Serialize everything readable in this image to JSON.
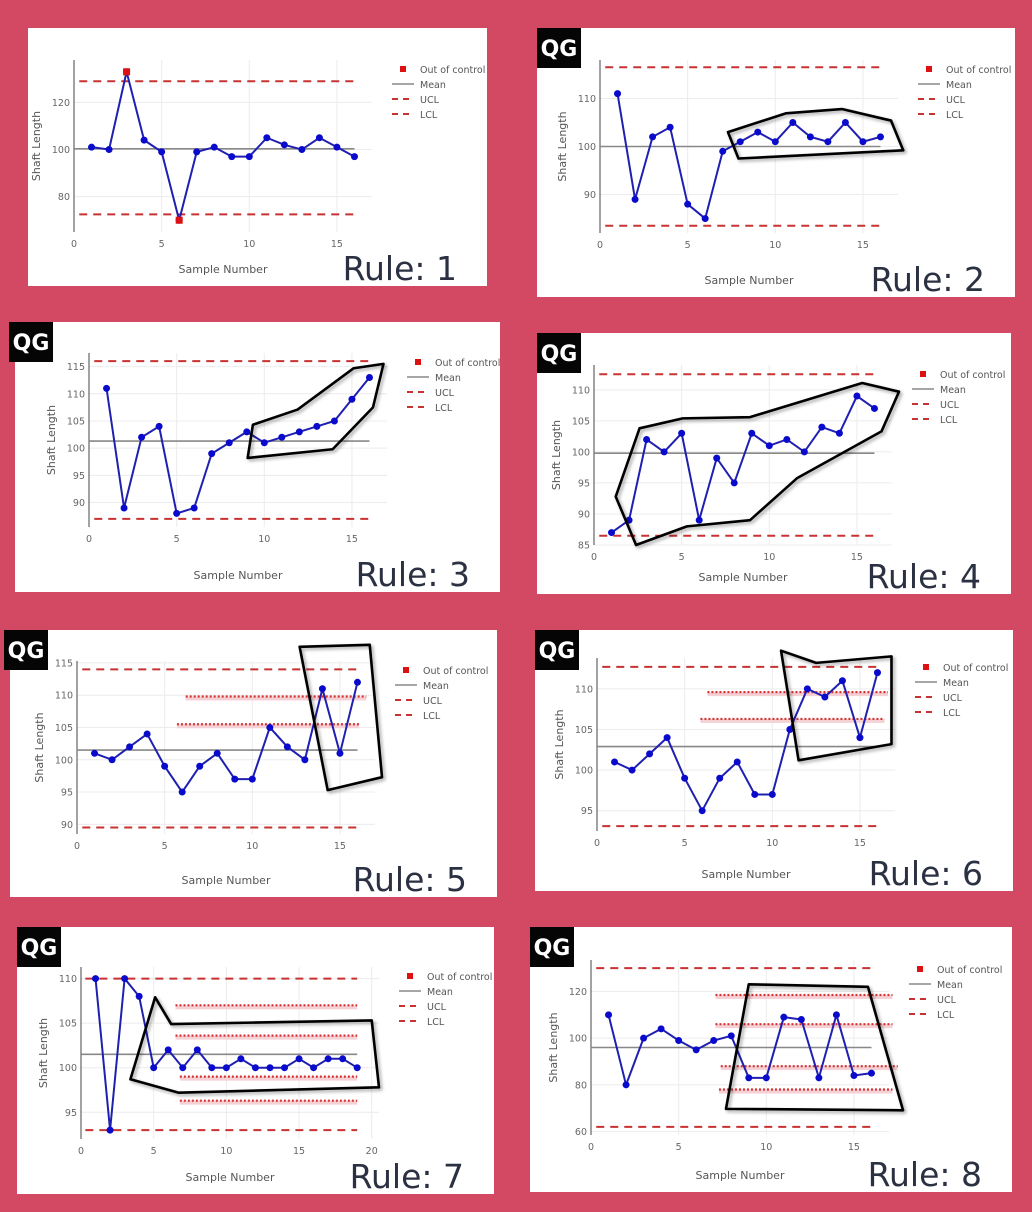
{
  "colors": {
    "background": "#d34862",
    "series": "#1f1fb0",
    "marker": "#0a0acc",
    "out_of_control": "#dd1111",
    "mean": "#888888",
    "control_limits": "#c83232",
    "zone_lines": "#d33333",
    "highlight": "#000000"
  },
  "chart_data": [
    {
      "type": "line",
      "title": "Rule: 1",
      "logo": "",
      "xlabel": "Sample Number",
      "ylabel": "Shaft Length",
      "xlim": [
        0,
        17
      ],
      "ylim": [
        65,
        138
      ],
      "xticks": [
        0,
        5,
        10,
        15
      ],
      "yticks": [
        80,
        100,
        120
      ],
      "grid": true,
      "x": [
        1,
        2,
        3,
        4,
        5,
        6,
        7,
        8,
        9,
        10,
        11,
        12,
        13,
        14,
        15,
        16
      ],
      "series": [
        {
          "values": [
            101,
            100,
            133,
            104,
            99,
            70,
            99,
            101,
            97,
            97,
            105,
            102,
            100,
            105,
            101,
            97
          ]
        }
      ],
      "mean": 100.3,
      "ucl": 129,
      "lcl": 72.5,
      "out_of_control": [
        {
          "x": 3,
          "y": 133
        },
        {
          "x": 6,
          "y": 70
        }
      ],
      "zone_lines": [],
      "highlight_polygon": [],
      "legend": [
        "Out of control",
        "Mean",
        "UCL",
        "LCL"
      ],
      "legend_position": "top-right"
    },
    {
      "type": "line",
      "title": "Rule: 2",
      "logo": "QG",
      "xlabel": "Sample Number",
      "ylabel": "Shaft Length",
      "xlim": [
        0,
        17
      ],
      "ylim": [
        82,
        118
      ],
      "xticks": [
        0,
        5,
        10,
        15
      ],
      "yticks": [
        90,
        100,
        110
      ],
      "grid": true,
      "x": [
        1,
        2,
        3,
        4,
        5,
        6,
        7,
        8,
        9,
        10,
        11,
        12,
        13,
        14,
        15,
        16
      ],
      "series": [
        {
          "values": [
            111,
            89,
            102,
            104,
            88,
            85,
            99,
            101,
            103,
            101,
            105,
            102,
            101,
            105,
            101,
            102
          ]
        }
      ],
      "mean": 100,
      "ucl": 116.5,
      "lcl": 83.5,
      "out_of_control": [],
      "zone_lines": [],
      "highlight_polygon": [
        [
          7.3,
          103
        ],
        [
          10.6,
          106.9
        ],
        [
          13.8,
          107.8
        ],
        [
          16.6,
          105.4
        ],
        [
          17.3,
          99.2
        ],
        [
          7.9,
          97.5
        ]
      ],
      "legend": [
        "Out of control",
        "Mean",
        "UCL",
        "LCL"
      ],
      "legend_position": "top-right"
    },
    {
      "type": "line",
      "title": "Rule: 3",
      "logo": "QG",
      "xlabel": "Sample Number",
      "ylabel": "Shaft Length",
      "xlim": [
        0,
        17
      ],
      "ylim": [
        85.5,
        117.5
      ],
      "xticks": [
        0,
        5,
        10,
        15
      ],
      "yticks": [
        90,
        95,
        100,
        105,
        110,
        115
      ],
      "grid": true,
      "x": [
        1,
        2,
        3,
        4,
        5,
        6,
        7,
        8,
        9,
        10,
        11,
        12,
        13,
        14,
        15,
        16
      ],
      "series": [
        {
          "values": [
            111,
            89,
            102,
            104,
            88,
            89,
            99,
            101,
            103,
            101,
            102,
            103,
            104,
            105,
            109,
            113
          ]
        }
      ],
      "mean": 101.3,
      "ucl": 116,
      "lcl": 87,
      "out_of_control": [],
      "zone_lines": [],
      "highlight_polygon": [
        [
          9.35,
          104.3
        ],
        [
          11.9,
          107.1
        ],
        [
          15.1,
          114.7
        ],
        [
          16.8,
          115.5
        ],
        [
          16.2,
          107.5
        ],
        [
          13.9,
          99.8
        ],
        [
          9.05,
          98.2
        ]
      ],
      "legend": [
        "Out of control",
        "Mean",
        "UCL",
        "LCL"
      ],
      "legend_position": "top-right"
    },
    {
      "type": "line",
      "title": "Rule: 4",
      "logo": "QG",
      "xlabel": "Sample Number",
      "ylabel": "Shaft Length",
      "xlim": [
        0,
        17
      ],
      "ylim": [
        85,
        114
      ],
      "xticks": [
        0,
        5,
        10,
        15
      ],
      "yticks": [
        85,
        90,
        95,
        100,
        105,
        110
      ],
      "grid": true,
      "x": [
        1,
        2,
        3,
        4,
        5,
        6,
        7,
        8,
        9,
        10,
        11,
        12,
        13,
        14,
        15,
        16
      ],
      "series": [
        {
          "values": [
            87,
            89,
            102,
            100,
            103,
            89,
            99,
            95,
            103,
            101,
            102,
            100,
            104,
            103,
            109,
            107
          ]
        }
      ],
      "mean": 99.8,
      "ucl": 112.5,
      "lcl": 86.5,
      "out_of_control": [],
      "zone_lines": [],
      "highlight_polygon": [
        [
          1.24,
          92.8
        ],
        [
          2.6,
          103.8
        ],
        [
          5.06,
          105.4
        ],
        [
          8.9,
          105.6
        ],
        [
          15.3,
          111.1
        ],
        [
          17.4,
          109.7
        ],
        [
          16.4,
          103.3
        ],
        [
          11.6,
          95.8
        ],
        [
          8.9,
          89
        ],
        [
          5.3,
          88
        ],
        [
          2.4,
          85
        ]
      ],
      "legend": [
        "Out of control",
        "Mean",
        "UCL",
        "LCL"
      ],
      "legend_position": "top-right"
    },
    {
      "type": "line",
      "title": "Rule: 5",
      "logo": "QG",
      "xlabel": "Sample Number",
      "ylabel": "Shaft Length",
      "xlim": [
        0,
        17
      ],
      "ylim": [
        88.5,
        115.3
      ],
      "xticks": [
        0,
        5,
        10,
        15
      ],
      "yticks": [
        90,
        95,
        100,
        105,
        110,
        115
      ],
      "grid": true,
      "x": [
        1,
        2,
        3,
        4,
        5,
        6,
        7,
        8,
        9,
        10,
        11,
        12,
        13,
        14,
        15,
        16
      ],
      "series": [
        {
          "values": [
            101,
            100,
            102,
            104,
            99,
            95,
            99,
            101,
            97,
            97,
            105,
            102,
            100,
            111,
            101,
            112
          ]
        }
      ],
      "mean": 101.5,
      "ucl": 114,
      "lcl": 89.5,
      "out_of_control": [],
      "zone_lines": [
        {
          "y": 109.8,
          "x": [
            6.2,
            16.5
          ]
        },
        {
          "y": 105.5,
          "x": [
            5.7,
            16.1
          ]
        }
      ],
      "highlight_polygon": [
        [
          12.7,
          117.5
        ],
        [
          16.7,
          117.8
        ],
        [
          17.4,
          97.3
        ],
        [
          14.3,
          95.3
        ]
      ],
      "legend": [
        "Out of control",
        "Mean",
        "UCL",
        "LCL"
      ],
      "legend_position": "top-right"
    },
    {
      "type": "line",
      "title": "Rule: 6",
      "logo": "QG",
      "xlabel": "Sample Number",
      "ylabel": "Shaft Length",
      "xlim": [
        0,
        17
      ],
      "ylim": [
        92.5,
        113.8
      ],
      "xticks": [
        0,
        5,
        10,
        15
      ],
      "yticks": [
        95,
        100,
        105,
        110
      ],
      "grid": true,
      "x": [
        1,
        2,
        3,
        4,
        5,
        6,
        7,
        8,
        9,
        10,
        11,
        12,
        13,
        14,
        15,
        16
      ],
      "series": [
        {
          "values": [
            101,
            100,
            102,
            104,
            99,
            95,
            99,
            101,
            97,
            97,
            105,
            110,
            109,
            111,
            104,
            112
          ]
        }
      ],
      "mean": 102.9,
      "ucl": 112.7,
      "lcl": 93.1,
      "out_of_control": [],
      "zone_lines": [
        {
          "y": 109.6,
          "x": [
            6.3,
            16.6
          ]
        },
        {
          "y": 106.3,
          "x": [
            5.9,
            16.4
          ]
        }
      ],
      "highlight_polygon": [
        [
          10.5,
          114.7
        ],
        [
          12.5,
          113.2
        ],
        [
          16.8,
          114
        ],
        [
          16.8,
          103.2
        ],
        [
          11.5,
          101.2
        ]
      ],
      "legend": [
        "Out of control",
        "Mean",
        "UCL",
        "LCL"
      ],
      "legend_position": "top-right"
    },
    {
      "type": "line",
      "title": "Rule: 7",
      "logo": "QG",
      "xlabel": "Sample Number",
      "ylabel": "Shaft Length",
      "xlim": [
        0,
        20.5
      ],
      "ylim": [
        92,
        111.3
      ],
      "xticks": [
        0,
        5,
        10,
        15,
        20
      ],
      "yticks": [
        95,
        100,
        105,
        110
      ],
      "grid": true,
      "x": [
        1,
        2,
        3,
        4,
        5,
        6,
        7,
        8,
        9,
        10,
        11,
        12,
        13,
        14,
        15,
        16,
        17,
        18,
        19
      ],
      "series": [
        {
          "values": [
            110,
            93,
            110,
            108,
            100,
            102,
            100,
            102,
            100,
            100,
            101,
            100,
            100,
            100,
            101,
            100,
            101,
            101,
            100
          ]
        }
      ],
      "mean": 101.5,
      "ucl": 110,
      "lcl": 93,
      "out_of_control": [],
      "zone_lines": [
        {
          "y": 107,
          "x": [
            6.5,
            19
          ]
        },
        {
          "y": 103.6,
          "x": [
            6.5,
            19
          ]
        },
        {
          "y": 99,
          "x": [
            6.8,
            19
          ]
        },
        {
          "y": 96.3,
          "x": [
            6.8,
            19
          ]
        }
      ],
      "highlight_polygon": [
        [
          5.1,
          107.9
        ],
        [
          6.2,
          104.9
        ],
        [
          20,
          105.3
        ],
        [
          20.5,
          97.8
        ],
        [
          6.7,
          97.2
        ],
        [
          3.4,
          98.7
        ]
      ],
      "legend": [
        "Out of control",
        "Mean",
        "UCL",
        "LCL"
      ],
      "legend_position": "top-right"
    },
    {
      "type": "line",
      "title": "Rule: 8",
      "logo": "QG",
      "xlabel": "Sample Number",
      "ylabel": "Shaft Length",
      "xlim": [
        0,
        17
      ],
      "ylim": [
        58.5,
        133.5
      ],
      "xticks": [
        0,
        5,
        10,
        15
      ],
      "yticks": [
        60,
        80,
        100,
        120
      ],
      "grid": true,
      "x": [
        1,
        2,
        3,
        4,
        5,
        6,
        7,
        8,
        9,
        10,
        11,
        12,
        13,
        14,
        15,
        16
      ],
      "series": [
        {
          "values": [
            110,
            80,
            100,
            104,
            99,
            95,
            99,
            101,
            83,
            83,
            109,
            108,
            83,
            110,
            84,
            85
          ]
        }
      ],
      "mean": 96,
      "ucl": 130,
      "lcl": 62,
      "out_of_control": [],
      "zone_lines": [
        {
          "y": 118.5,
          "x": [
            7.1,
            17.2
          ]
        },
        {
          "y": 106,
          "x": [
            7.1,
            17.2
          ]
        },
        {
          "y": 88,
          "x": [
            7.4,
            17.5
          ]
        },
        {
          "y": 78,
          "x": [
            7.3,
            17.2
          ]
        }
      ],
      "highlight_polygon": [
        [
          9,
          123.1
        ],
        [
          15.8,
          122
        ],
        [
          17.8,
          69.1
        ],
        [
          7.7,
          69.7
        ]
      ],
      "legend": [
        "Out of control",
        "Mean",
        "UCL",
        "LCL"
      ],
      "legend_position": "top-right"
    }
  ]
}
